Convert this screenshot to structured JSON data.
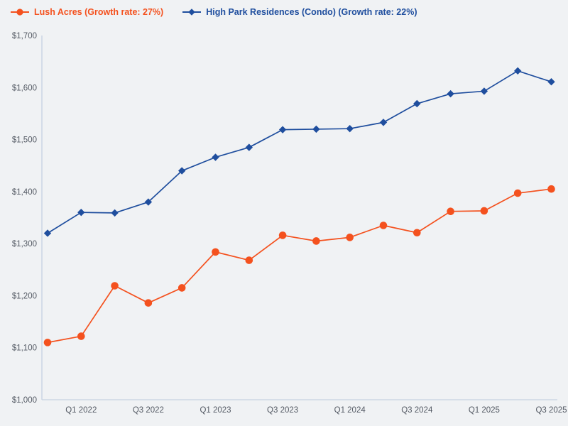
{
  "page": {
    "background_color": "#f0f2f4",
    "axis_line_color": "#c6d1e1",
    "tick_text_color": "#545a64"
  },
  "chart_data": {
    "type": "line",
    "title": "",
    "xlabel": "",
    "ylabel": "",
    "grid": false,
    "legend_position": "top-left",
    "ylim": [
      1000,
      1700
    ],
    "y_ticks": [
      1000,
      1100,
      1200,
      1300,
      1400,
      1500,
      1600,
      1700
    ],
    "y_tick_prefix": "$",
    "x": [
      "Q4 2021",
      "Q1 2022",
      "Q2 2022",
      "Q3 2022",
      "Q4 2022",
      "Q1 2023",
      "Q2 2023",
      "Q3 2023",
      "Q4 2023",
      "Q1 2024",
      "Q2 2024",
      "Q3 2024",
      "Q4 2024",
      "Q1 2025",
      "Q2 2025",
      "Q3 2025"
    ],
    "x_tick_labels": [
      "Q1 2022",
      "Q3 2022",
      "Q1 2023",
      "Q3 2023",
      "Q1 2024",
      "Q3 2024",
      "Q1 2025",
      "Q3 2025"
    ],
    "series": [
      {
        "name": "Lush Acres",
        "legend_label": "Lush Acres (Growth rate: 27%)",
        "growth_rate": "27%",
        "color": "#f4511e",
        "marker": "circle",
        "values": [
          1110,
          1122,
          1219,
          1186,
          1215,
          1284,
          1268,
          1316,
          1305,
          1312,
          1335,
          1321,
          1362,
          1363,
          1397,
          1405
        ]
      },
      {
        "name": "High Park Residences (Condo)",
        "legend_label": "High Park Residences (Condo) (Growth rate: 22%)",
        "growth_rate": "22%",
        "color": "#1f4e9e",
        "marker": "diamond",
        "values": [
          1320,
          1360,
          1359,
          1380,
          1440,
          1466,
          1485,
          1519,
          1520,
          1521,
          1533,
          1569,
          1588,
          1593,
          1632,
          1611
        ]
      }
    ]
  }
}
